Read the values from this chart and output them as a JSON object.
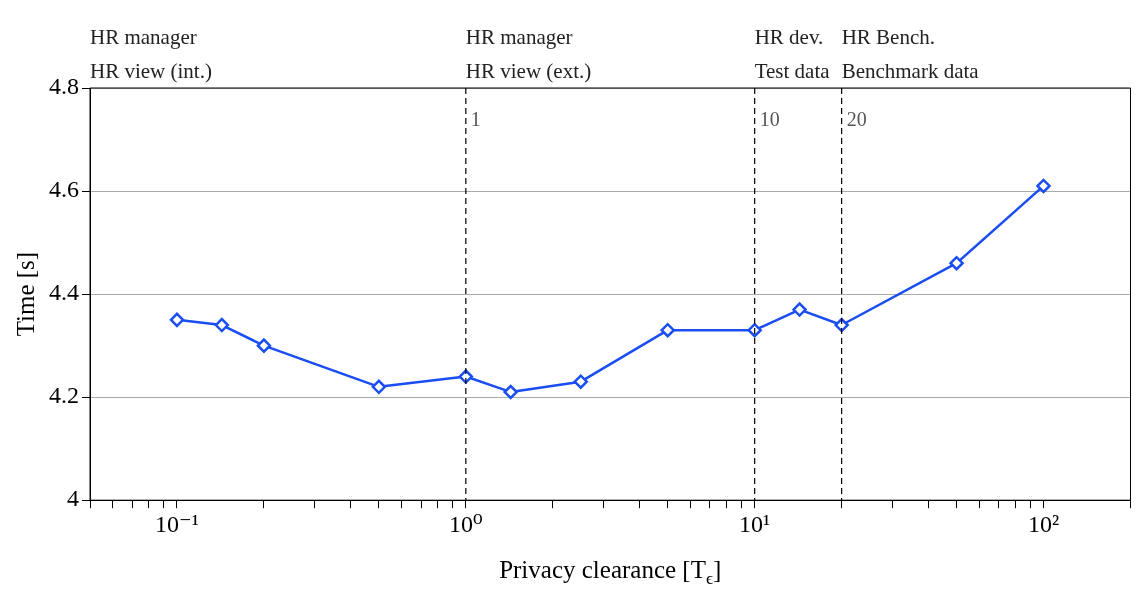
{
  "chart_data": {
    "type": "line",
    "xlabel": "Privacy clearance [T$_{ϵ}$]",
    "ylabel": "Time [s]",
    "series": [
      {
        "color": "#1a4ef2",
        "x": [
          0.1,
          0.143,
          0.2,
          0.5,
          1,
          1.43,
          2.5,
          5,
          10,
          14.3,
          20,
          50,
          100
        ],
        "values": [
          4.35,
          4.34,
          4.3,
          4.22,
          4.24,
          4.21,
          4.23,
          4.33,
          4.33,
          4.37,
          4.34,
          4.46,
          4.61
        ]
      }
    ],
    "log": "x",
    "marker": "diamond",
    "line_style": "solid",
    "grid": "y",
    "legend": false,
    "xlim": [
      0.05,
      200
    ],
    "xticks": [
      {
        "value": 0.05,
        "label": null
      },
      {
        "value": 0.06,
        "label": null
      },
      {
        "value": 0.07,
        "label": null
      },
      {
        "value": 0.08,
        "label": null
      },
      {
        "value": 0.09,
        "label": null
      },
      {
        "value": 0.1,
        "label": "10⁻¹"
      },
      {
        "value": 0.2,
        "label": null
      },
      {
        "value": 0.3,
        "label": null
      },
      {
        "value": 0.4,
        "label": null
      },
      {
        "value": 0.5,
        "label": null
      },
      {
        "value": 0.6,
        "label": null
      },
      {
        "value": 0.7,
        "label": null
      },
      {
        "value": 0.8,
        "label": null
      },
      {
        "value": 0.9,
        "label": null
      },
      {
        "value": 1,
        "label": "10⁰"
      },
      {
        "value": 2,
        "label": null
      },
      {
        "value": 3,
        "label": null
      },
      {
        "value": 4,
        "label": null
      },
      {
        "value": 5,
        "label": null
      },
      {
        "value": 6,
        "label": null
      },
      {
        "value": 7,
        "label": null
      },
      {
        "value": 8,
        "label": null
      },
      {
        "value": 9,
        "label": null
      },
      {
        "value": 10,
        "label": "10¹"
      },
      {
        "value": 20,
        "label": null
      },
      {
        "value": 30,
        "label": null
      },
      {
        "value": 40,
        "label": null
      },
      {
        "value": 50,
        "label": null
      },
      {
        "value": 60,
        "label": null
      },
      {
        "value": 70,
        "label": null
      },
      {
        "value": 80,
        "label": null
      },
      {
        "value": 90,
        "label": null
      },
      {
        "value": 100,
        "label": "10²"
      },
      {
        "value": 200,
        "label": null
      }
    ],
    "ylim": [
      4,
      4.8
    ],
    "yticks": [
      4,
      4.2,
      4.4,
      4.6,
      4.8
    ],
    "ref_lines": [
      {
        "axis": "x",
        "value": 1,
        "label": "1",
        "line_style": "dashed",
        "color": "#000000"
      },
      {
        "axis": "x",
        "value": 10,
        "label": "10",
        "line_style": "dashed",
        "color": "#000000"
      },
      {
        "axis": "x",
        "value": 20,
        "label": "20",
        "line_style": "dashed",
        "color": "#000000"
      }
    ],
    "annotations": [
      "HR manager\nHR view (int.)",
      "HR manager\nHR view (ext.)",
      "HR dev.\nTest data",
      "HR Bench.\nBenchmark data"
    ]
  }
}
